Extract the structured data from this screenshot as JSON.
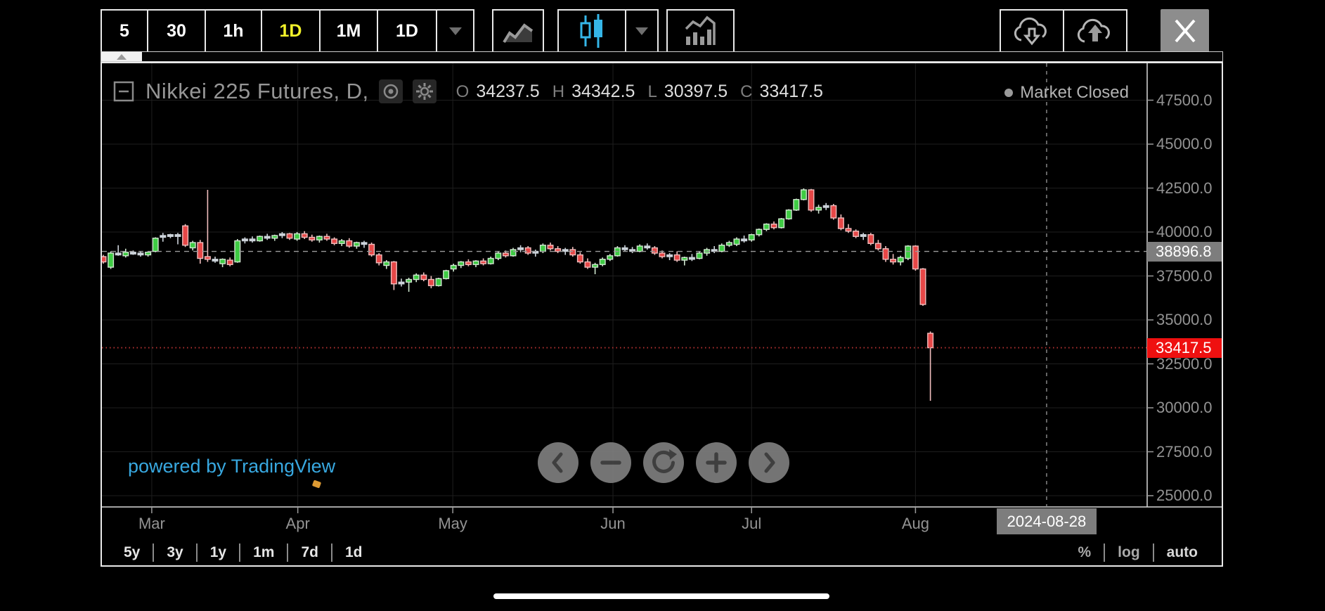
{
  "toolbar": {
    "intervals": [
      {
        "label": "5",
        "active": false
      },
      {
        "label": "30",
        "active": false
      },
      {
        "label": "1h",
        "active": false
      },
      {
        "label": "1D",
        "active": true
      },
      {
        "label": "1M",
        "active": false
      },
      {
        "label": "1D",
        "active": false
      }
    ],
    "icons": [
      "interval-dropdown",
      "line-chart",
      "candlestick-chart",
      "chart-type-dropdown",
      "indicators",
      "cloud-download",
      "cloud-upload",
      "close"
    ]
  },
  "chart": {
    "title": "Nikkei 225 Futures, D,",
    "status": "Market Closed",
    "ohlc": {
      "o_key": "O",
      "o": "34237.5",
      "h_key": "H",
      "h": "34342.5",
      "l_key": "L",
      "l": "30397.5",
      "c_key": "C",
      "c": "33417.5"
    }
  },
  "chart_data": {
    "type": "candlestick",
    "symbol": "Nikkei 225 Futures",
    "interval": "D",
    "last_ohlc": {
      "open": 34237.5,
      "high": 34342.5,
      "low": 30397.5,
      "close": 33417.5
    },
    "y_ticks": [
      {
        "label": "47500.0",
        "value": 47500
      },
      {
        "label": "45000.0",
        "value": 45000
      },
      {
        "label": "42500.0",
        "value": 42500
      },
      {
        "label": "40000.0",
        "value": 40000
      },
      {
        "label": "37500.0",
        "value": 37500
      },
      {
        "label": "35000.0",
        "value": 35000
      },
      {
        "label": "32500.0",
        "value": 32500
      },
      {
        "label": "30000.0",
        "value": 30000
      },
      {
        "label": "27500.0",
        "value": 27500
      },
      {
        "label": "25000.0",
        "value": 25000
      }
    ],
    "months": [
      {
        "label": "Mar",
        "i": 6.5
      },
      {
        "label": "Apr",
        "i": 26.1
      },
      {
        "label": "May",
        "i": 46.9
      },
      {
        "label": "Jun",
        "i": 68.4
      },
      {
        "label": "Jul",
        "i": 87.0
      },
      {
        "label": "Aug",
        "i": 109.0
      }
    ],
    "price_lines": [
      {
        "label": "38896.8",
        "value": 38896.8,
        "style": "dashed",
        "bg": "#7d7d7d"
      },
      {
        "label": "33417.5",
        "value": 33417.5,
        "style": "dotted",
        "bg": "#ef1010"
      }
    ],
    "crosshair": {
      "label": "2024-08-28",
      "i": 126.6
    },
    "ylim": [
      24500,
      48500
    ],
    "candles": [
      [
        38600,
        38700,
        38200,
        38300
      ],
      [
        38000,
        38900,
        37900,
        38800
      ],
      [
        38800,
        39250,
        38650,
        38700
      ],
      [
        38650,
        39050,
        38550,
        38850
      ],
      [
        38850,
        38950,
        38700,
        38800
      ],
      [
        38800,
        38900,
        38600,
        38700
      ],
      [
        38700,
        38900,
        38600,
        38850
      ],
      [
        38900,
        39700,
        38850,
        39650
      ],
      [
        39750,
        39950,
        39450,
        39800
      ],
      [
        39800,
        39900,
        39650,
        39850
      ],
      [
        39850,
        39950,
        39300,
        39750
      ],
      [
        40350,
        40450,
        39150,
        39250
      ],
      [
        39100,
        39500,
        38950,
        39400
      ],
      [
        39400,
        39550,
        38200,
        38500
      ],
      [
        38600,
        42400,
        38300,
        38450
      ],
      [
        38450,
        38600,
        38250,
        38350
      ],
      [
        38200,
        38500,
        38000,
        38450
      ],
      [
        38400,
        38550,
        38050,
        38150
      ],
      [
        38300,
        39600,
        38250,
        39500
      ],
      [
        39500,
        39700,
        39350,
        39600
      ],
      [
        39600,
        39750,
        39400,
        39500
      ],
      [
        39500,
        39800,
        39450,
        39750
      ],
      [
        39750,
        39900,
        39550,
        39650
      ],
      [
        39650,
        39850,
        39500,
        39800
      ],
      [
        39800,
        40000,
        39650,
        39900
      ],
      [
        39900,
        39950,
        39550,
        39650
      ],
      [
        39600,
        40000,
        39500,
        39900
      ],
      [
        39900,
        40050,
        39600,
        39700
      ],
      [
        39700,
        39850,
        39450,
        39550
      ],
      [
        39550,
        39800,
        39400,
        39750
      ],
      [
        39750,
        39900,
        39500,
        39600
      ],
      [
        39600,
        39700,
        39250,
        39350
      ],
      [
        39350,
        39600,
        39200,
        39500
      ],
      [
        39500,
        39650,
        39100,
        39200
      ],
      [
        39200,
        39450,
        39050,
        39400
      ],
      [
        39400,
        39500,
        39100,
        39300
      ],
      [
        39300,
        39400,
        38600,
        38700
      ],
      [
        38700,
        38800,
        38100,
        38250
      ],
      [
        38100,
        38400,
        37900,
        38300
      ],
      [
        38300,
        38350,
        36700,
        37050
      ],
      [
        37050,
        37350,
        36900,
        37150
      ],
      [
        37150,
        37400,
        36600,
        37300
      ],
      [
        37300,
        37650,
        37150,
        37550
      ],
      [
        37550,
        37700,
        37200,
        37300
      ],
      [
        37300,
        37500,
        36800,
        36950
      ],
      [
        36950,
        37400,
        36900,
        37350
      ],
      [
        37350,
        37850,
        37300,
        37800
      ],
      [
        37900,
        38200,
        37750,
        38100
      ],
      [
        38100,
        38350,
        37950,
        38300
      ],
      [
        38300,
        38450,
        38050,
        38150
      ],
      [
        38150,
        38400,
        38000,
        38350
      ],
      [
        38350,
        38500,
        38100,
        38200
      ],
      [
        38200,
        38600,
        38150,
        38500
      ],
      [
        38500,
        38900,
        38400,
        38800
      ],
      [
        38800,
        38950,
        38550,
        38650
      ],
      [
        38650,
        39100,
        38600,
        39000
      ],
      [
        39000,
        39250,
        38850,
        39100
      ],
      [
        39100,
        39200,
        38700,
        38800
      ],
      [
        38800,
        39000,
        38600,
        38900
      ],
      [
        38900,
        39350,
        38800,
        39250
      ],
      [
        39250,
        39400,
        38950,
        39050
      ],
      [
        39050,
        39200,
        38800,
        38900
      ],
      [
        38900,
        39100,
        38700,
        39000
      ],
      [
        39000,
        39150,
        38600,
        38700
      ],
      [
        38700,
        38850,
        38200,
        38300
      ],
      [
        38300,
        38500,
        37900,
        38000
      ],
      [
        38000,
        38250,
        37600,
        38150
      ],
      [
        38150,
        38550,
        38050,
        38450
      ],
      [
        38450,
        38750,
        38350,
        38650
      ],
      [
        38650,
        39200,
        38600,
        39100
      ],
      [
        39100,
        39250,
        38900,
        39000
      ],
      [
        39000,
        39150,
        38800,
        38900
      ],
      [
        38900,
        39300,
        38850,
        39200
      ],
      [
        39200,
        39350,
        39000,
        39100
      ],
      [
        39100,
        39200,
        38700,
        38800
      ],
      [
        38800,
        38950,
        38500,
        38600
      ],
      [
        38600,
        38800,
        38400,
        38700
      ],
      [
        38700,
        38900,
        38300,
        38400
      ],
      [
        38400,
        38600,
        38100,
        38550
      ],
      [
        38550,
        38750,
        38350,
        38500
      ],
      [
        38500,
        38900,
        38450,
        38800
      ],
      [
        38800,
        39100,
        38650,
        39000
      ],
      [
        39000,
        39200,
        38800,
        38900
      ],
      [
        38900,
        39350,
        38850,
        39250
      ],
      [
        39250,
        39500,
        39150,
        39400
      ],
      [
        39300,
        39700,
        39200,
        39600
      ],
      [
        39600,
        39800,
        39400,
        39550
      ],
      [
        39550,
        39900,
        39450,
        39850
      ],
      [
        39850,
        40200,
        39750,
        40150
      ],
      [
        40150,
        40500,
        40050,
        40450
      ],
      [
        40450,
        40600,
        40150,
        40250
      ],
      [
        40250,
        40800,
        40200,
        40750
      ],
      [
        40750,
        41300,
        40700,
        41250
      ],
      [
        41250,
        41900,
        41200,
        41850
      ],
      [
        41850,
        42480,
        41800,
        42400
      ],
      [
        42400,
        42450,
        41150,
        41250
      ],
      [
        41250,
        41550,
        41050,
        41400
      ],
      [
        41400,
        41650,
        41250,
        41500
      ],
      [
        41500,
        41600,
        40700,
        40800
      ],
      [
        40800,
        41000,
        40100,
        40200
      ],
      [
        40200,
        40450,
        39950,
        40050
      ],
      [
        40050,
        40150,
        39650,
        39750
      ],
      [
        39750,
        39950,
        39550,
        39850
      ],
      [
        39850,
        39950,
        39250,
        39350
      ],
      [
        39350,
        39550,
        38950,
        39050
      ],
      [
        39050,
        39200,
        38300,
        38450
      ],
      [
        38450,
        38750,
        38150,
        38300
      ],
      [
        38300,
        38650,
        38100,
        38550
      ],
      [
        38500,
        39250,
        38400,
        39200
      ],
      [
        39200,
        39250,
        37800,
        37900
      ],
      [
        37900,
        37950,
        35800,
        35880
      ],
      [
        34237.5,
        34342.5,
        30397.5,
        33417.5
      ]
    ]
  },
  "footer": {
    "powered_by": "powered by TradingView",
    "ranges": [
      "5y",
      "3y",
      "1y",
      "1m",
      "7d",
      "1d"
    ],
    "scale": [
      "%",
      "log",
      "auto"
    ]
  },
  "colors": {
    "up_fill": "#3ecb43",
    "up_stroke": "#cfe6cf",
    "down_fill": "#e64747",
    "down_stroke": "#f0bdbd",
    "neutral_fill": "#ccd3da",
    "neutral_stroke": "#ccd3da",
    "grid": "#1e1e1e",
    "accent_blue": "#35b6e8",
    "active_yellow": "#f2f22a",
    "link_blue": "#38a8e0",
    "last_price_bg": "#ef1010",
    "marker_bg": "#7d7d7d"
  }
}
